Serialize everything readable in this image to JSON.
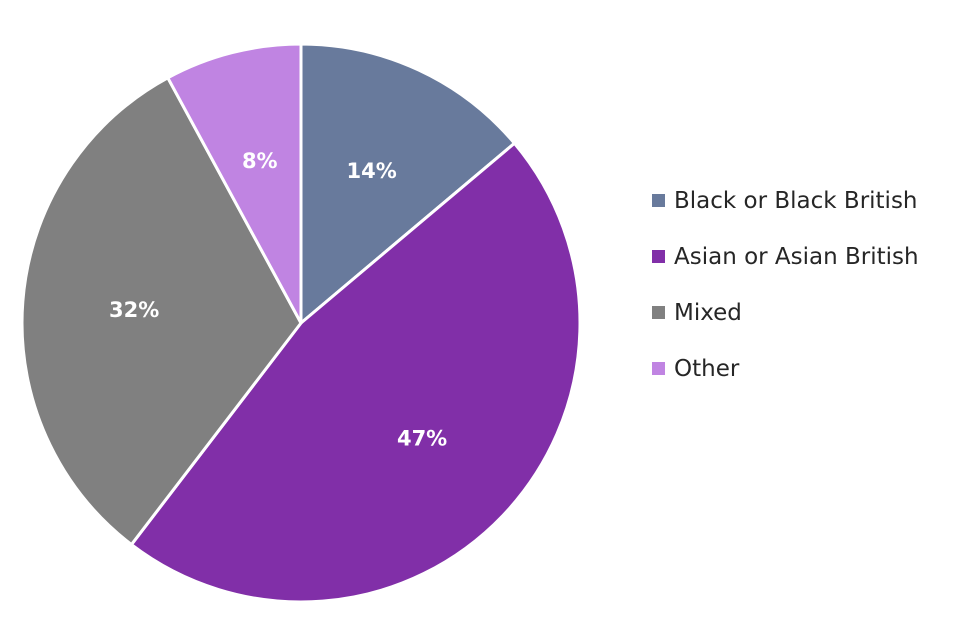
{
  "chart_data": {
    "type": "pie",
    "title": "",
    "categories": [
      "Black or Black British",
      "Asian or Asian British",
      "Mixed",
      "Other"
    ],
    "values": [
      14,
      47,
      32,
      8
    ],
    "value_labels": [
      "14%",
      "47%",
      "32%",
      "8%"
    ],
    "colors": [
      "#687a9c",
      "#812fa8",
      "#808080",
      "#c084e2"
    ],
    "start_angle_deg": 0,
    "direction": "clockwise",
    "legend_position": "right",
    "slice_border_color": "#ffffff",
    "label_color": "#ffffff"
  }
}
